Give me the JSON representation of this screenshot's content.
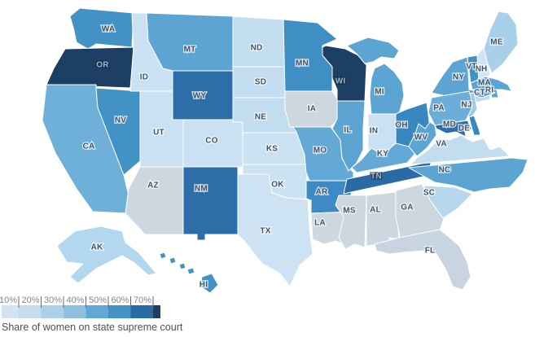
{
  "caption": "Share of women on state supreme court",
  "legend": {
    "tick_labels": [
      "10%",
      "20%",
      "30%",
      "40%",
      "50%",
      "60%",
      "70%"
    ],
    "colors": [
      "#d3e3f1",
      "#c6dcee",
      "#abd0e8",
      "#8cc0e0",
      "#63a8d4",
      "#4292c6",
      "#2a6ba6",
      "#1c3f63"
    ]
  },
  "chart_data": {
    "type": "choropleth",
    "unit": "share of women, %",
    "scale_ticks": [
      10,
      20,
      30,
      40,
      50,
      60,
      70
    ],
    "no_data_color": "#cdd7df"
  },
  "map": {
    "states": [
      {
        "abbr": "WA",
        "fill": "#4292c6",
        "label_style": "dark",
        "bucket": "50-60"
      },
      {
        "abbr": "OR",
        "fill": "#1c3f63",
        "label_style": "light",
        "bucket": "70+"
      },
      {
        "abbr": "CA",
        "fill": "#6fb0d9",
        "label_style": "dark",
        "bucket": "40-50"
      },
      {
        "abbr": "NV",
        "fill": "#4292c6",
        "label_style": "dark",
        "bucket": "50-60"
      },
      {
        "abbr": "ID",
        "fill": "#c9e1f2",
        "label_style": "dark",
        "bucket": "20-30"
      },
      {
        "abbr": "MT",
        "fill": "#5ca4d2",
        "label_style": "dark",
        "bucket": "40-50"
      },
      {
        "abbr": "WY",
        "fill": "#2e6ea8",
        "label_style": "dark",
        "bucket": "60-70"
      },
      {
        "abbr": "UT",
        "fill": "#c9e1f2",
        "label_style": "dark",
        "bucket": "20-30"
      },
      {
        "abbr": "CO",
        "fill": "#c9e1f2",
        "label_style": "dark",
        "bucket": "20-30"
      },
      {
        "abbr": "AZ",
        "fill": "#cdd7df",
        "label_style": "dark",
        "bucket": "other"
      },
      {
        "abbr": "NM",
        "fill": "#2e6ea8",
        "label_style": "dark",
        "bucket": "60-70"
      },
      {
        "abbr": "ND",
        "fill": "#c3ddf0",
        "label_style": "dark",
        "bucket": "20-30"
      },
      {
        "abbr": "SD",
        "fill": "#c3ddf0",
        "label_style": "dark",
        "bucket": "20-30"
      },
      {
        "abbr": "NE",
        "fill": "#c3ddf0",
        "label_style": "dark",
        "bucket": "20-30"
      },
      {
        "abbr": "KS",
        "fill": "#cbe2f3",
        "label_style": "dark",
        "bucket": "20-30"
      },
      {
        "abbr": "OK",
        "fill": "#cbe2f3",
        "label_style": "dark",
        "bucket": "20-30"
      },
      {
        "abbr": "TX",
        "fill": "#cde3f3",
        "label_style": "dark",
        "bucket": "20-30"
      },
      {
        "abbr": "MN",
        "fill": "#3f8fc5",
        "label_style": "dark",
        "bucket": "50-60"
      },
      {
        "abbr": "IA",
        "fill": "#cdd7df",
        "label_style": "dark",
        "bucket": "other"
      },
      {
        "abbr": "MO",
        "fill": "#64a9d5",
        "label_style": "dark",
        "bucket": "40-50"
      },
      {
        "abbr": "AR",
        "fill": "#3d8ac4",
        "label_style": "dark",
        "bucket": "50-60"
      },
      {
        "abbr": "LA",
        "fill": "#cdd7df",
        "label_style": "dark",
        "bucket": "other"
      },
      {
        "abbr": "WI",
        "fill": "#1c3f63",
        "label_style": "light",
        "bucket": "70+"
      },
      {
        "abbr": "IL",
        "fill": "#5ca4d2",
        "label_style": "dark",
        "bucket": "40-50"
      },
      {
        "abbr": "MI",
        "fill": "#5ca4d2",
        "label_style": "dark",
        "bucket": "40-50"
      },
      {
        "abbr": "IN",
        "fill": "#c9e1f2",
        "label_style": "dark",
        "bucket": "20-30"
      },
      {
        "abbr": "OH",
        "fill": "#3787c1",
        "label_style": "dark",
        "bucket": "50-60"
      },
      {
        "abbr": "KY",
        "fill": "#64a9d5",
        "label_style": "dark",
        "bucket": "40-50"
      },
      {
        "abbr": "TN",
        "fill": "#2b6ba5",
        "label_style": "light",
        "bucket": "60-70"
      },
      {
        "abbr": "MS",
        "fill": "#cdd7df",
        "label_style": "dark",
        "bucket": "other"
      },
      {
        "abbr": "AL",
        "fill": "#cdd7df",
        "label_style": "dark",
        "bucket": "other"
      },
      {
        "abbr": "GA",
        "fill": "#cdd7df",
        "label_style": "dark",
        "bucket": "other"
      },
      {
        "abbr": "FL",
        "fill": "#c9d4e2",
        "label_style": "dark",
        "bucket": "other"
      },
      {
        "abbr": "ME",
        "fill": "#a9d0ea",
        "label_style": "dark",
        "bucket": "30-40"
      },
      {
        "abbr": "NH",
        "fill": "#cfe5f4",
        "label_style": "dark",
        "bucket": "20-30"
      },
      {
        "abbr": "VT",
        "fill": "#4292c6",
        "label_style": "dark",
        "bucket": "50-60"
      },
      {
        "abbr": "MA",
        "fill": "#5ca4d2",
        "label_style": "dark",
        "bucket": "40-50"
      },
      {
        "abbr": "RI",
        "fill": "#5ca4d2",
        "label_style": "dark",
        "bucket": "40-50"
      },
      {
        "abbr": "CT",
        "fill": "#bcd9ee",
        "label_style": "dark",
        "bucket": "20-30"
      },
      {
        "abbr": "NY",
        "fill": "#5ca4d2",
        "label_style": "dark",
        "bucket": "40-50"
      },
      {
        "abbr": "NJ",
        "fill": "#9fcae6",
        "label_style": "dark",
        "bucket": "30-40"
      },
      {
        "abbr": "PA",
        "fill": "#6caed8",
        "label_style": "dark",
        "bucket": "40-50"
      },
      {
        "abbr": "MD",
        "fill": "#2e6ea8",
        "label_style": "dark",
        "bucket": "60-70"
      },
      {
        "abbr": "DE",
        "fill": "#3787c1",
        "label_style": "dark",
        "bucket": "50-60"
      },
      {
        "abbr": "WV",
        "fill": "#5ca4d2",
        "label_style": "dark",
        "bucket": "40-50"
      },
      {
        "abbr": "VA",
        "fill": "#c3ddf0",
        "label_style": "dark",
        "bucket": "20-30"
      },
      {
        "abbr": "NC",
        "fill": "#5ca4d2",
        "label_style": "dark",
        "bucket": "40-50"
      },
      {
        "abbr": "SC",
        "fill": "#b7d7ec",
        "label_style": "dark",
        "bucket": "30-40"
      },
      {
        "abbr": "AK",
        "fill": "#b3d7ee",
        "label_style": "dark",
        "bucket": "30-40"
      },
      {
        "abbr": "HI",
        "fill": "#4292c6",
        "label_style": "dark",
        "bucket": "50-60"
      }
    ]
  }
}
